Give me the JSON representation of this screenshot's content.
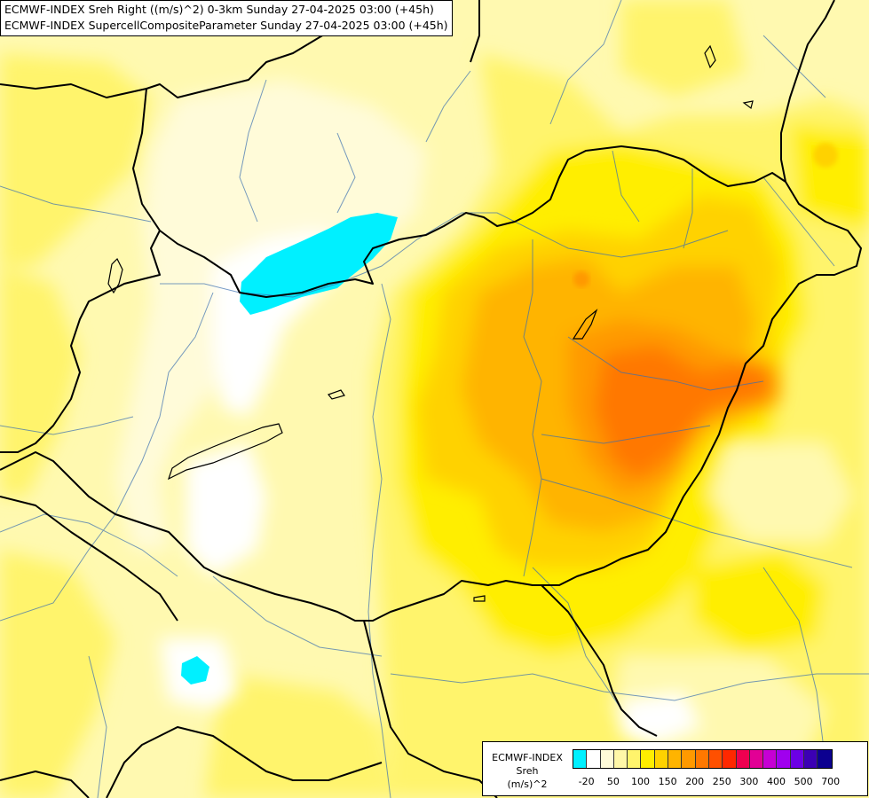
{
  "title": {
    "line1": "ECMWF-INDEX Sreh Right ((m/s)^2) 0-3km Sunday 27-04-2025 03:00 (+45h)",
    "line2": "ECMWF-INDEX SupercellCompositeParameter Sunday 27-04-2025 03:00 (+45h)"
  },
  "legend": {
    "line1": "ECMWF-INDEX",
    "line2": "Sreh",
    "line3": "(m/s)^2",
    "colors": [
      "#00f0ff",
      "#ffffff",
      "#fffbd9",
      "#fff7a8",
      "#fff46c",
      "#ffee00",
      "#ffd200",
      "#ffb400",
      "#ff9900",
      "#ff7800",
      "#ff5000",
      "#ff2800",
      "#ee0050",
      "#e20095",
      "#c600d4",
      "#a000ee",
      "#6c00e4",
      "#3c00b4",
      "#0c0090"
    ],
    "ticks": [
      "-20",
      "50",
      "100",
      "150",
      "200",
      "250",
      "300",
      "400",
      "500",
      "700"
    ]
  }
}
